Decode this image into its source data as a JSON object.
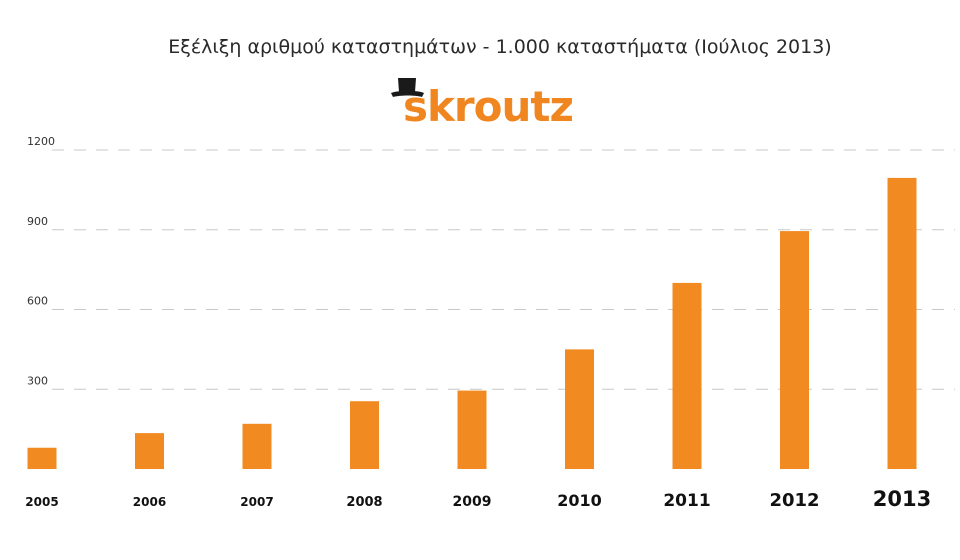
{
  "title": "Εξέλιξη αριθμού καταστημάτων - 1.000 καταστήματα (Ιούλιος 2013)",
  "logo": {
    "text": "skroutz",
    "brand_color": "#f0861f",
    "icon": "top-hat-icon"
  },
  "chart_data": {
    "type": "bar",
    "title": "Εξέλιξη αριθμού καταστημάτων - 1.000 καταστήματα (Ιούλιος 2013)",
    "categories": [
      "2005",
      "2006",
      "2007",
      "2008",
      "2009",
      "2010",
      "2011",
      "2012",
      "2013"
    ],
    "values": [
      80,
      135,
      170,
      255,
      295,
      450,
      700,
      895,
      1095
    ],
    "yticks": [
      "300",
      "600",
      "900",
      "1200"
    ],
    "ytick_values": [
      300,
      600,
      900,
      1200
    ],
    "ylim": [
      0,
      1200
    ],
    "xlabel": "",
    "ylabel": "",
    "bar_color": "#f28a22",
    "grid": true,
    "legend": "none"
  }
}
